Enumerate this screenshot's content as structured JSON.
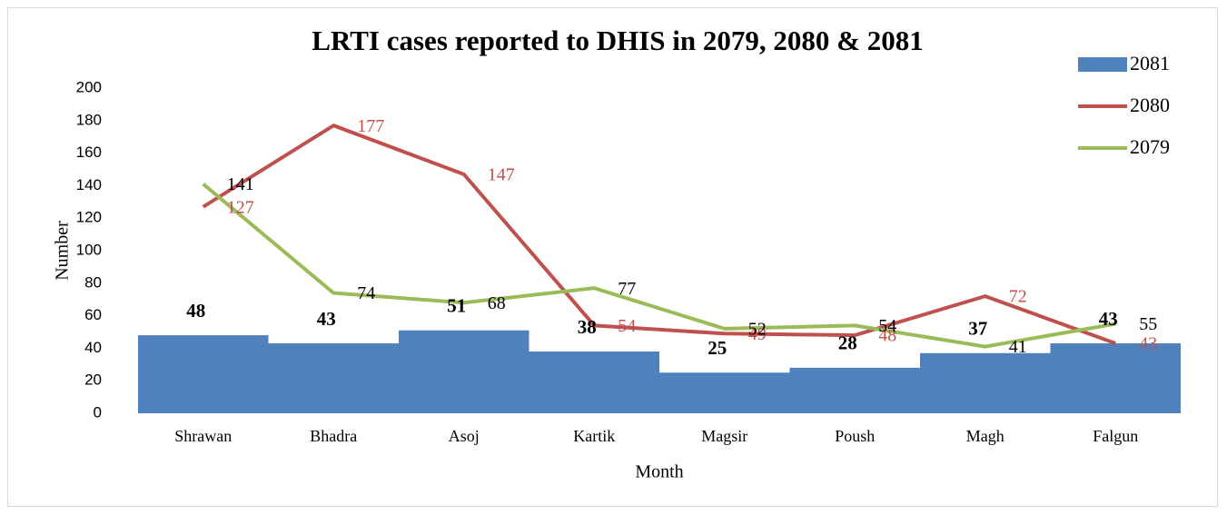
{
  "chart_data": {
    "type": "combo",
    "title": "LRTI cases reported to DHIS in 2079, 2080 & 2081",
    "x_label": "Month",
    "y_label": "Number",
    "categories": [
      "Shrawan",
      "Bhadra",
      "Asoj",
      "Kartik",
      "Magsir",
      "Poush",
      "Magh",
      "Falgun"
    ],
    "ylim": [
      0,
      200
    ],
    "yticks": [
      0,
      20,
      40,
      60,
      80,
      100,
      120,
      140,
      160,
      180,
      200
    ],
    "grid": false,
    "legend": "top-right",
    "series": [
      {
        "name": "2081",
        "type": "bar",
        "color": "#4f81bd",
        "label_color": "#000000",
        "values": [
          48,
          43,
          51,
          38,
          25,
          28,
          37,
          43
        ]
      },
      {
        "name": "2080",
        "type": "line",
        "color": "#c0504d",
        "label_color": "#c0504d",
        "values": [
          127,
          177,
          147,
          54,
          49,
          48,
          72,
          43
        ]
      },
      {
        "name": "2079",
        "type": "line",
        "color": "#9bbb59",
        "label_color": "#000000",
        "values": [
          141,
          74,
          68,
          77,
          52,
          54,
          41,
          55
        ]
      }
    ]
  }
}
